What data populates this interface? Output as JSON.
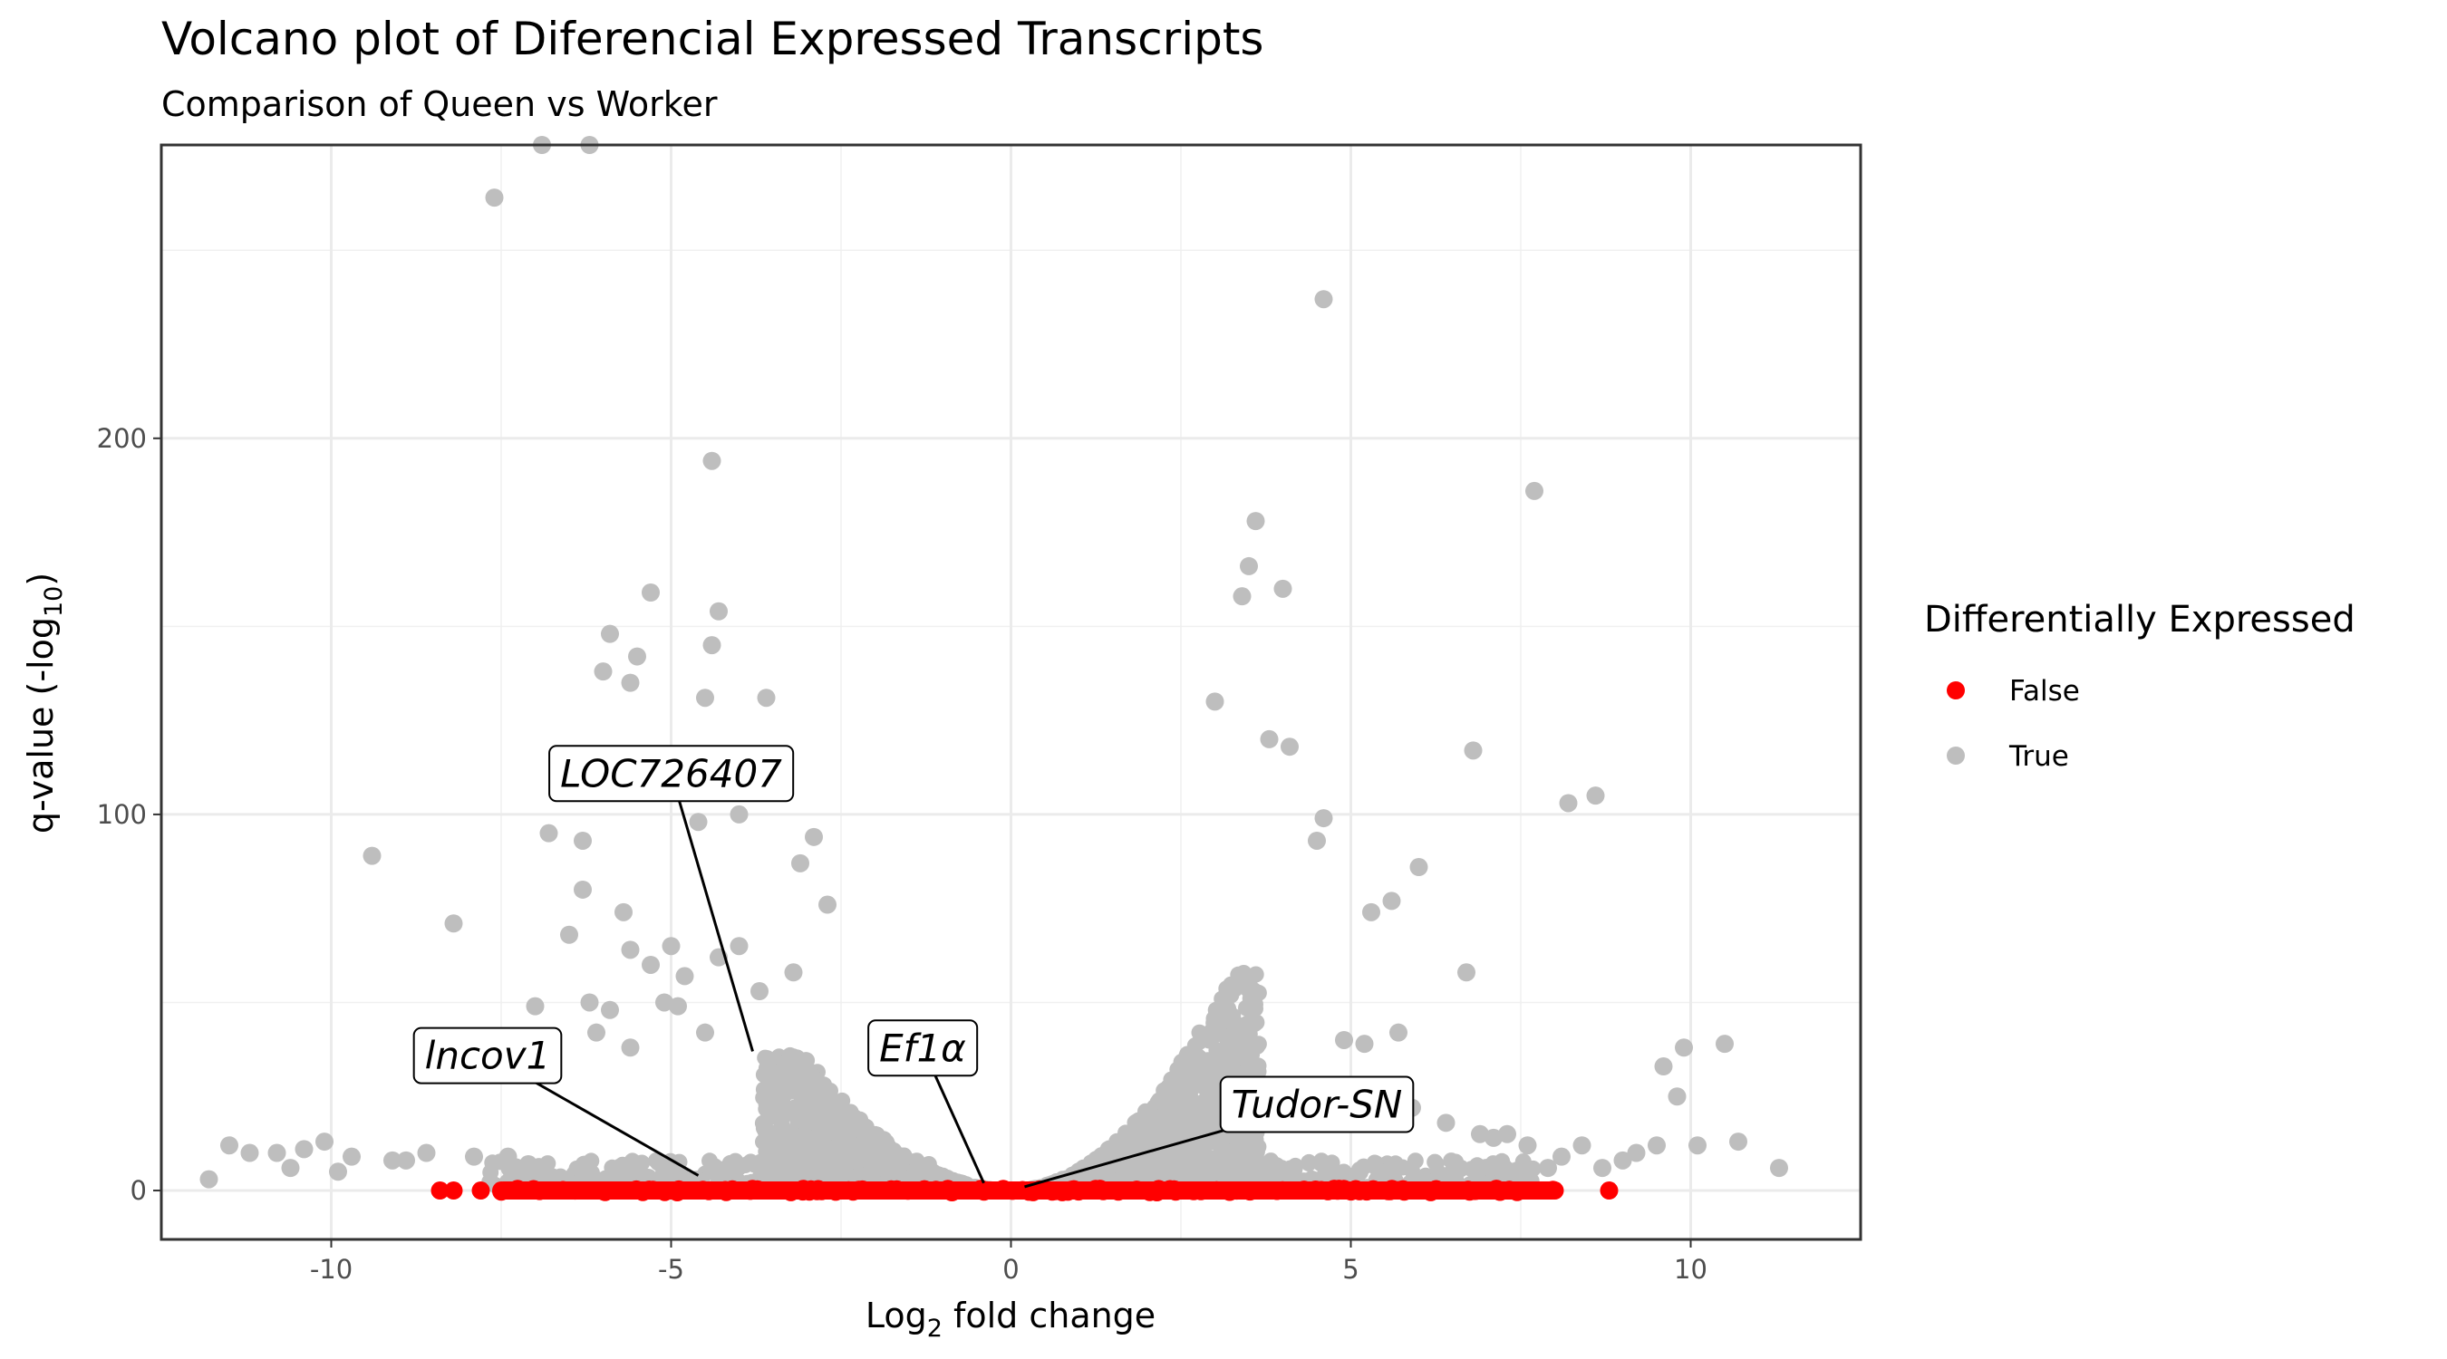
{
  "chart_data": {
    "type": "scatter",
    "title": "Volcano plot of Diferencial Expressed Transcripts",
    "subtitle": "Comparison of Queen vs Worker",
    "xlabel": {
      "main": "Log",
      "sub": "2",
      "rest": " fold change"
    },
    "ylabel": {
      "main": "q-value (-log",
      "sub": "10",
      "rest": ")"
    },
    "xlim": [
      -12.5,
      12.5
    ],
    "ylim": [
      -13,
      278
    ],
    "x_ticks": [
      -10,
      -5,
      0,
      5,
      10
    ],
    "x_tick_labels": [
      "-10",
      "-5",
      "0",
      "5",
      "10"
    ],
    "y_ticks": [
      0,
      100,
      200
    ],
    "y_tick_labels": [
      "0",
      "100",
      "200"
    ],
    "grid": true,
    "legend": {
      "title": "Differentially Expressed",
      "position": "right",
      "entries": [
        {
          "label": "False",
          "color": "#ff0000"
        },
        {
          "label": "True",
          "color": "#bebebe"
        }
      ]
    },
    "series": [
      {
        "name": "True",
        "color": "#bebebe",
        "x": [
          -6.9,
          -6.2,
          -7.6,
          4.6,
          -4.4,
          7.7,
          3.6,
          3.5,
          4.0,
          3.4,
          -5.3,
          -4.3,
          -5.9,
          -5.5,
          -4.4,
          -6.0,
          -5.6,
          -4.5,
          -3.6,
          3.0,
          6.8,
          3.8,
          4.1,
          8.6,
          8.2,
          -4.0,
          -4.6,
          -6.8,
          -6.3,
          -2.9,
          -9.4,
          4.6,
          6.0,
          -3.1,
          4.5,
          5.6,
          5.3,
          6.7,
          -8.2,
          -6.3,
          -5.3,
          -4.0,
          -6.5,
          -5.7,
          -5.0,
          -4.8,
          -5.6,
          -5.1,
          -4.3,
          -3.2,
          -2.7,
          -6.2,
          -5.9,
          -7.0,
          -4.9,
          -4.5,
          -3.7,
          4.9,
          5.2,
          5.7,
          -5.6,
          -6.1,
          10.5,
          9.9,
          9.6,
          9.8,
          -10.1,
          -10.8,
          -11.5,
          -11.8,
          -10.4,
          -10.6,
          -11.2,
          -9.7,
          -9.1,
          -8.6,
          -7.9,
          -7.1,
          6.9,
          7.3,
          7.6,
          8.1,
          8.7,
          9.2,
          9.5,
          10.1,
          10.7,
          11.3,
          9.0,
          8.4,
          7.9,
          7.1,
          6.4,
          5.9,
          -8.9,
          -9.9,
          -7.4
        ],
        "y": [
          278,
          278,
          264,
          237,
          194,
          186,
          178,
          166,
          160,
          158,
          159,
          154,
          148,
          142,
          145,
          138,
          135,
          131,
          131,
          130,
          117,
          120,
          118,
          105,
          103,
          100,
          98,
          95,
          93,
          94,
          89,
          99,
          86,
          87,
          93,
          77,
          74,
          58,
          71,
          80,
          60,
          65,
          68,
          74,
          65,
          57,
          64,
          50,
          62,
          58,
          76,
          50,
          48,
          49,
          49,
          42,
          53,
          40,
          39,
          42,
          38,
          42,
          39,
          38,
          33,
          25,
          13,
          10,
          12,
          3,
          11,
          6,
          10,
          9,
          8,
          10,
          9,
          7,
          15,
          15,
          12,
          9,
          6,
          10,
          12,
          12,
          13,
          6,
          8,
          12,
          6,
          14,
          18,
          22,
          8,
          5,
          9
        ]
      },
      {
        "name": "False",
        "color": "#ff0000",
        "x": [
          -8.4,
          -8.2,
          -7.8,
          -7.5,
          7.8,
          8.0,
          8.8
        ]
      }
    ],
    "annotations": [
      {
        "label": "LOC726407",
        "x": -3.8,
        "y": 37,
        "text_x": -5.0,
        "text_y": 111
      },
      {
        "label": "lncov1",
        "x": -4.6,
        "y": 4,
        "text_x": -7.7,
        "text_y": 36
      },
      {
        "label": "Ef1α",
        "x": -0.4,
        "y": 2,
        "text_x": -1.3,
        "text_y": 38
      },
      {
        "label": "Tudor-SN",
        "x": 0.2,
        "y": 1,
        "text_x": 4.5,
        "text_y": 23
      }
    ]
  }
}
